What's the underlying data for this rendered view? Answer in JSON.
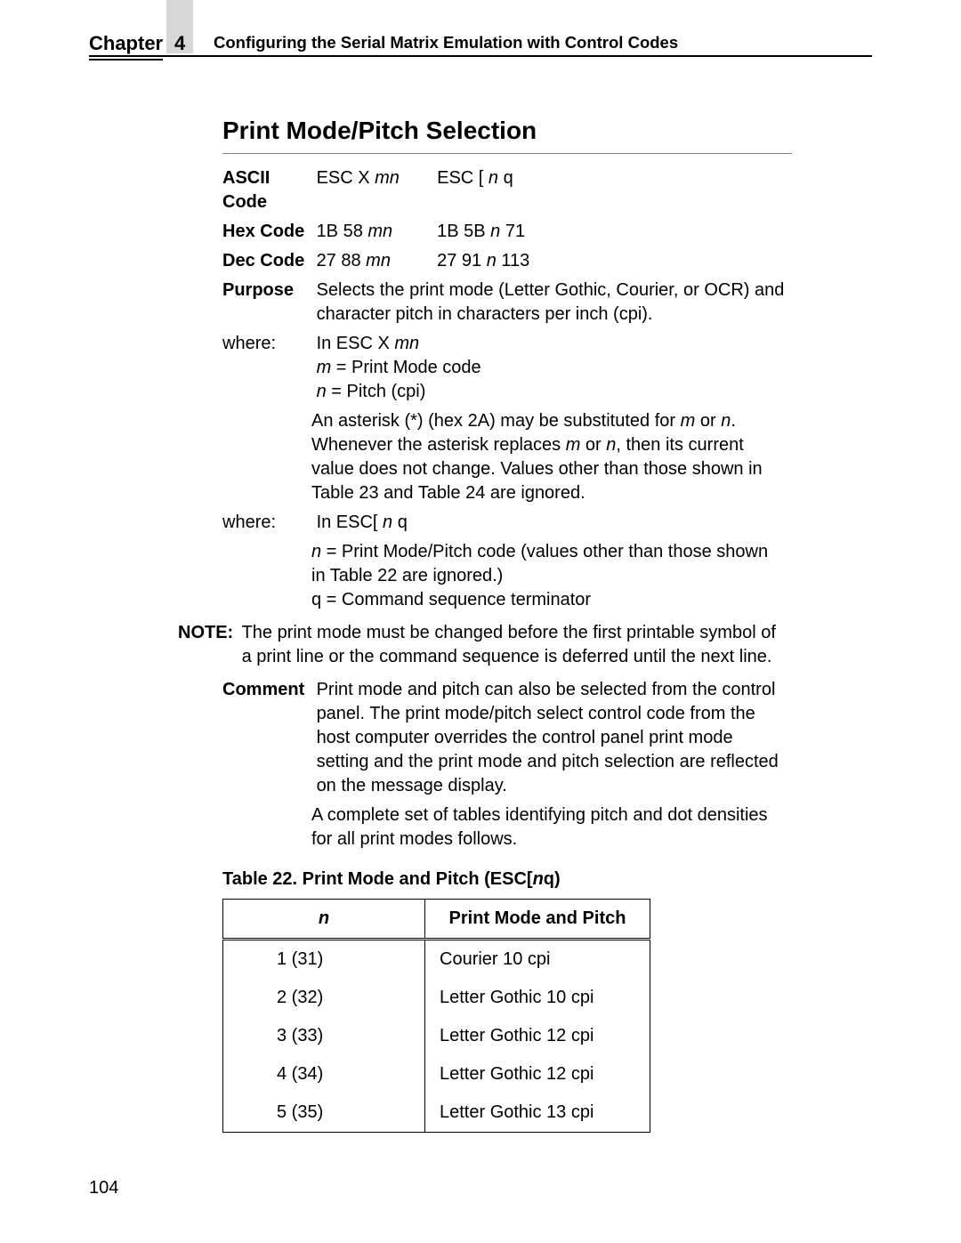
{
  "header": {
    "chapter_label": "Chapter",
    "chapter_num": "4",
    "title": "Configuring the Serial Matrix Emulation with Control Codes"
  },
  "section": {
    "title": "Print Mode/Pitch Selection"
  },
  "codes": {
    "ascii_label": "ASCII Code",
    "ascii_c1_a": "ESC X ",
    "ascii_c1_b": "mn",
    "ascii_c2_a": "ESC [ ",
    "ascii_c2_b": "n",
    "ascii_c2_c": " q",
    "hex_label": "Hex Code",
    "hex_c1_a": "1B 58 ",
    "hex_c1_b": "mn",
    "hex_c2_a": "1B 5B ",
    "hex_c2_b": "n",
    "hex_c2_c": " 71",
    "dec_label": "Dec Code",
    "dec_c1_a": "27 88 ",
    "dec_c1_b": "mn",
    "dec_c2_a": "27 91 ",
    "dec_c2_b": "n",
    "dec_c2_c": " 113",
    "purpose_label": "Purpose",
    "purpose_text": "Selects the print mode (Letter Gothic, Courier, or OCR) and character pitch in characters per inch (cpi).",
    "where1_label": "where:",
    "where1_l1a": "In ESC X ",
    "where1_l1b": "mn",
    "where1_l2a": "m",
    "where1_l2b": " = Print Mode code",
    "where1_l3a": "n",
    "where1_l3b": " = Pitch (cpi)",
    "ast_a": "An asterisk (*) (hex 2A) may be substituted for ",
    "ast_m": "m",
    "ast_or": " or ",
    "ast_n": "n",
    "ast_b": ". Whenever the asterisk replaces ",
    "ast_m2": "m",
    "ast_n2": "n",
    "ast_c": ", then its current value does not change. Values other than those shown in Table 23 and Table 24 are ignored.",
    "where2_label": "where:",
    "where2_l1a": "In ESC[ ",
    "where2_l1b": "n",
    "where2_l1c": " q",
    "where2_l2a": "n",
    "where2_l2b": " = Print Mode/Pitch code (values other than those shown in Table 22 are ignored.)",
    "where2_l3": "q = Command sequence terminator",
    "note_label": "NOTE:",
    "note_text": "The print mode must be changed before the first printable symbol of a print line or the command sequence is deferred until the next line.",
    "comment_label": "Comment",
    "comment_text": "Print mode and pitch can also be selected from the control panel. The print mode/pitch select control code from the host computer overrides the control panel print mode setting and the print mode and pitch selection are reflected on the message display.",
    "followup": "A complete set of tables identifying pitch and dot densities for all print modes follows."
  },
  "table": {
    "caption_a": "Table 22. Print Mode and Pitch (ESC[",
    "caption_b": "n",
    "caption_c": "q)",
    "h0": "n",
    "h1": "Print Mode and Pitch",
    "rows": [
      {
        "c0": "1 (31)",
        "c1": "Courier 10 cpi"
      },
      {
        "c0": "2 (32)",
        "c1": "Letter Gothic 10 cpi"
      },
      {
        "c0": "3 (33)",
        "c1": "Letter Gothic 12 cpi"
      },
      {
        "c0": "4 (34)",
        "c1": "Letter Gothic 12 cpi"
      },
      {
        "c0": "5 (35)",
        "c1": "Letter Gothic 13 cpi"
      }
    ]
  },
  "page_num": "104",
  "style": {
    "text_color": "#000000",
    "bg_color": "#ffffff",
    "tab_color": "#d7d7d7",
    "rule_color": "#808080"
  }
}
